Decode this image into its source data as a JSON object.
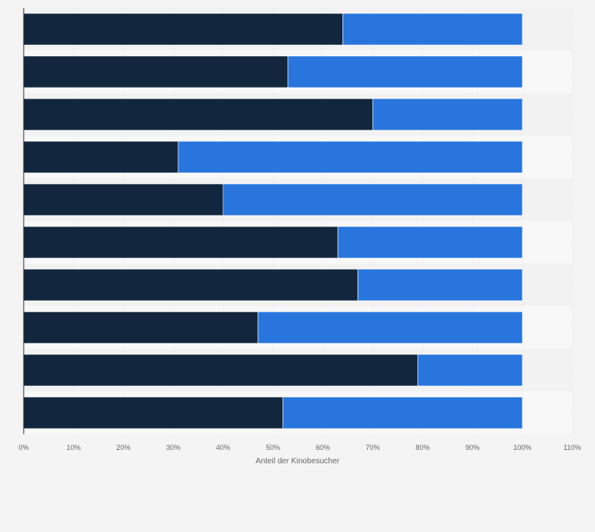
{
  "chart_data": {
    "type": "bar",
    "orientation": "horizontal",
    "stacked": true,
    "categories": [
      "",
      "",
      "",
      "",
      "",
      "",
      "",
      "",
      "",
      ""
    ],
    "series": [
      {
        "values": [
          64,
          53,
          70,
          31,
          40,
          63,
          67,
          47,
          79,
          52
        ],
        "color": "#12273d"
      },
      {
        "values": [
          36,
          47,
          30,
          69,
          60,
          37,
          33,
          53,
          21,
          48
        ],
        "color": "#2876dd"
      }
    ],
    "xlabel": "Anteil der Kinobesucher",
    "ylabel": "",
    "xlim": [
      0,
      110
    ],
    "xticks": [
      "0%",
      "10%",
      "20%",
      "30%",
      "40%",
      "50%",
      "60%",
      "70%",
      "80%",
      "90%",
      "100%",
      "110%"
    ],
    "grid": true,
    "legend": "none"
  }
}
